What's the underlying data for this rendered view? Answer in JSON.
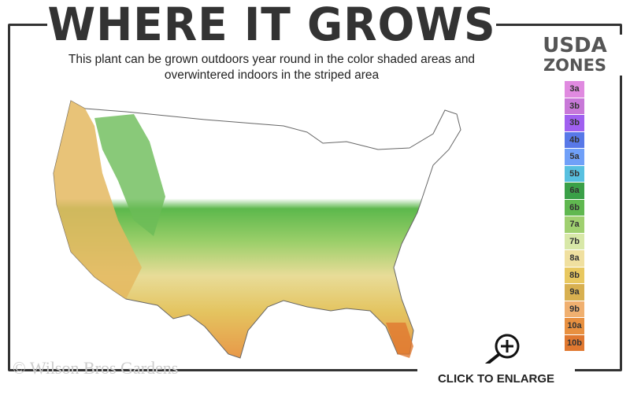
{
  "header": {
    "title": "WHERE IT GROWS",
    "subtitle": "This plant can be grown outdoors year round in the color shaded areas and overwintered indoors in the striped area"
  },
  "legend": {
    "title_line1": "USDA",
    "title_line2": "ZONES",
    "zones": [
      {
        "label": "3a",
        "color": "#e08ae0"
      },
      {
        "label": "3b",
        "color": "#c878d8"
      },
      {
        "label": "3b",
        "color": "#a060f0"
      },
      {
        "label": "4b",
        "color": "#5878e8"
      },
      {
        "label": "5a",
        "color": "#70a0f8"
      },
      {
        "label": "5b",
        "color": "#58c0e0"
      },
      {
        "label": "6a",
        "color": "#3aa048"
      },
      {
        "label": "6b",
        "color": "#60b850"
      },
      {
        "label": "7a",
        "color": "#a0d070"
      },
      {
        "label": "7b",
        "color": "#d8e8a8"
      },
      {
        "label": "8a",
        "color": "#f0e0a0"
      },
      {
        "label": "8b",
        "color": "#e8c860"
      },
      {
        "label": "9a",
        "color": "#d8b050"
      },
      {
        "label": "9b",
        "color": "#f0b070"
      },
      {
        "label": "10a",
        "color": "#e89040"
      },
      {
        "label": "10b",
        "color": "#e07830"
      }
    ]
  },
  "footer": {
    "copyright": "© Wilson Bros Gardens",
    "enlarge_label": "CLICK TO ENLARGE"
  },
  "icons": {
    "enlarge": "magnifier-plus-icon"
  }
}
